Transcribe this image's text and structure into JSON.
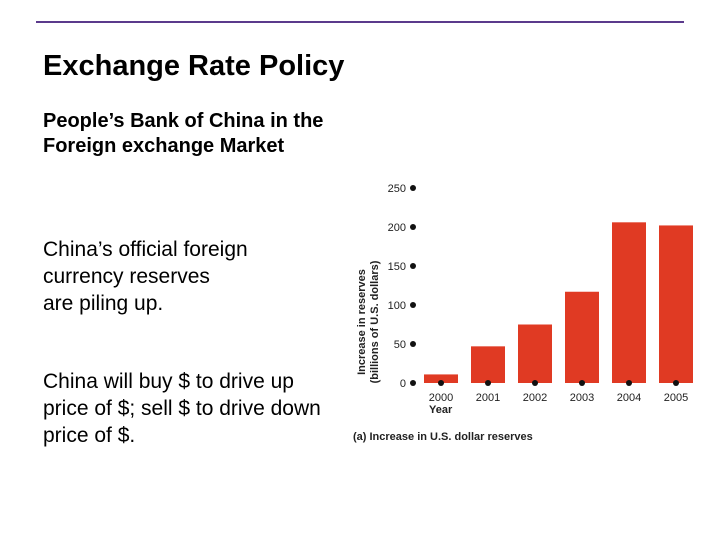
{
  "slide": {
    "title": "Exchange Rate Policy",
    "subtitle": "People’s Bank of China in the Foreign exchange Market",
    "paragraph1_line1": "China’s official foreign currency reserves",
    "paragraph1_line2": "are piling up.",
    "paragraph2": "China will buy $ to drive up price of $; sell $ to drive down price of $."
  },
  "colors": {
    "bar": "#e03a23",
    "rule": "#5b3a8c"
  },
  "chart_data": {
    "type": "bar",
    "categories": [
      "2000",
      "2001",
      "2002",
      "2003",
      "2004",
      "2005"
    ],
    "values": [
      11,
      47,
      75,
      117,
      206,
      202
    ],
    "ylim": [
      0,
      250
    ],
    "yticks": [
      0,
      50,
      100,
      150,
      200,
      250
    ],
    "ylabel_line1": "Increase in reserves",
    "ylabel_line2": "(billions of U.S. dollars)",
    "xlabel": "Year",
    "caption": "(a) Increase in U.S. dollar reserves",
    "grid": false
  }
}
